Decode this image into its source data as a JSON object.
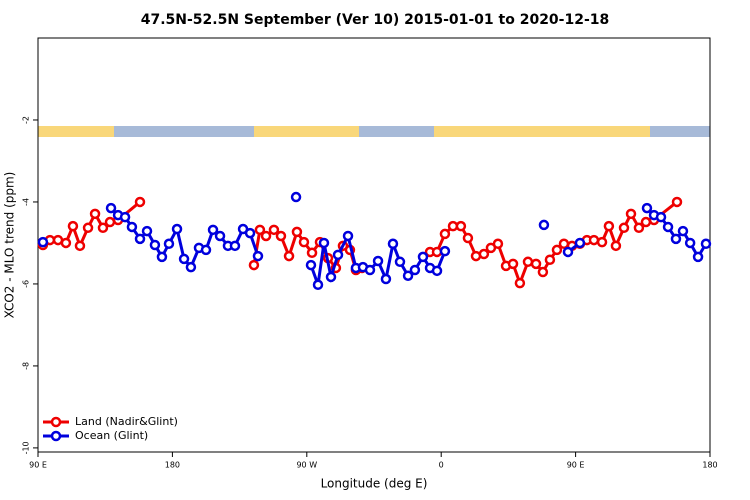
{
  "chart_data": {
    "type": "line",
    "title": "47.5N-52.5N September (Ver 10)   2015-01-01 to 2020-12-18",
    "xlabel": "Longitude (deg E)",
    "ylabel": "XCO2 - MLO trend (ppm)",
    "xlim": [
      90,
      540
    ],
    "ylim": [
      -10.1,
      0
    ],
    "xticks": [
      {
        "value": 90,
        "label": "90 E"
      },
      {
        "value": 180,
        "label": "180"
      },
      {
        "value": 270,
        "label": "90 W"
      },
      {
        "value": 360,
        "label": "0"
      },
      {
        "value": 450,
        "label": "90 E"
      },
      {
        "value": 540,
        "label": "180"
      }
    ],
    "yticks": [
      -2,
      -4,
      -6,
      -8,
      -10
    ],
    "legend": "bottom-left",
    "series": [
      {
        "name": "Land (Nadir&Glint)",
        "color": "#ee0000",
        "x": [
          93.3,
          98.0,
          103.4,
          108.7,
          113.4,
          118.1,
          123.5,
          128.2,
          133.5,
          138.2,
          143.6,
          158.3,
          null,
          234.6,
          238.6,
          242.7,
          248.0,
          252.7,
          258.1,
          263.4,
          268.1,
          273.5,
          278.8,
          284.2,
          289.5,
          294.2,
          298.9,
          302.9,
          307.0,
          null,
          352.5,
          357.2,
          362.5,
          367.9,
          373.2,
          377.9,
          383.3,
          388.6,
          393.3,
          398.0,
          403.4,
          408.1,
          412.7,
          418.1,
          423.5,
          428.1,
          432.8,
          437.5,
          442.2,
          447.6,
          452.9,
          457.6,
          462.3,
          467.7,
          472.3,
          477.0,
          482.4,
          487.1,
          492.4,
          497.1,
          502.5,
          517.9
        ],
        "values": [
          -5.05,
          -4.93,
          -4.93,
          -5.0,
          -4.59,
          -5.07,
          -4.63,
          -4.29,
          -4.63,
          -4.49,
          -4.44,
          -4.0,
          null,
          -5.54,
          -4.68,
          -4.83,
          -4.68,
          -4.83,
          -5.32,
          -4.73,
          -4.98,
          -5.24,
          -4.98,
          -5.37,
          -5.61,
          -5.07,
          -5.17,
          -5.66,
          -5.61,
          null,
          -5.22,
          -5.22,
          -4.78,
          -4.59,
          -4.59,
          -4.88,
          -5.32,
          -5.27,
          -5.12,
          -5.02,
          -5.56,
          -5.51,
          -5.98,
          -5.46,
          -5.51,
          -5.71,
          -5.41,
          -5.17,
          -5.02,
          -5.07,
          -5.02,
          -4.93,
          -4.93,
          -4.98,
          -4.59,
          -5.07,
          -4.63,
          -4.29,
          -4.63,
          -4.49,
          -4.44,
          -4.0
        ]
      },
      {
        "name": "Ocean (Glint)",
        "color": "#0000dd",
        "x": [
          93.3,
          null,
          138.9,
          143.6,
          148.3,
          152.9,
          158.3,
          163.0,
          168.3,
          173.0,
          177.7,
          183.1,
          187.8,
          192.4,
          197.8,
          202.5,
          207.2,
          211.9,
          217.2,
          221.9,
          227.3,
          232.0,
          237.3,
          null,
          262.8,
          null,
          272.8,
          277.5,
          281.5,
          286.2,
          290.9,
          297.6,
          302.9,
          307.6,
          312.3,
          317.7,
          323.0,
          327.7,
          332.4,
          337.8,
          342.4,
          347.8,
          352.5,
          357.2,
          362.5,
          null,
          428.8,
          null,
          444.9,
          452.9,
          null,
          497.8,
          502.5,
          507.2,
          511.9,
          517.2,
          521.9,
          526.7,
          532.0,
          537.3
        ],
        "values": [
          -4.98,
          null,
          -4.15,
          -4.32,
          -4.37,
          -4.61,
          -4.9,
          -4.71,
          -5.05,
          -5.34,
          -5.02,
          -4.66,
          -5.39,
          -5.59,
          -5.12,
          -5.17,
          -4.68,
          -4.83,
          -5.07,
          -5.07,
          -4.66,
          -4.76,
          -5.32,
          null,
          -3.88,
          null,
          -5.54,
          -6.02,
          -5.0,
          -5.83,
          -5.29,
          -4.83,
          -5.61,
          -5.59,
          -5.66,
          -5.44,
          -5.88,
          -5.02,
          -5.46,
          -5.8,
          -5.66,
          -5.34,
          -5.61,
          -5.68,
          -5.2,
          null,
          -4.56,
          null,
          -5.22,
          -5.0,
          null,
          -4.15,
          -4.32,
          -4.37,
          -4.61,
          -4.9,
          -4.71,
          -5.0,
          -5.34,
          -5.02
        ]
      }
    ]
  }
}
